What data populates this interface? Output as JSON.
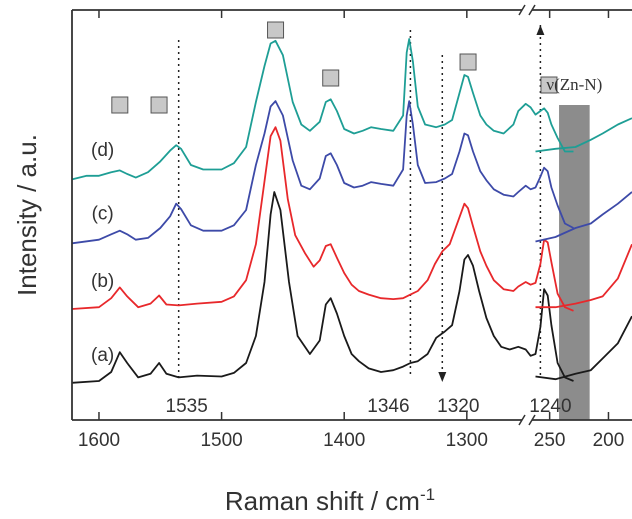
{
  "chart_data": {
    "type": "line",
    "title": "",
    "xlabel": "Raman shift / cm",
    "xlabel_sup": "-1",
    "ylabel": "Intensity / a.u.",
    "x_axis_reversed": true,
    "x_axis_broken": true,
    "x_segments": [
      {
        "xlim": [
          1622,
          1255
        ],
        "ticks": [
          1600,
          1500,
          1400,
          1300
        ]
      },
      {
        "xlim": [
          265,
          180
        ],
        "ticks": [
          250,
          200
        ]
      }
    ],
    "colors": {
      "a": "#1a1a1a",
      "b": "#e8282b",
      "c": "#3d4aa8",
      "d": "#1e9e95",
      "band": "#8c8c8c",
      "marker": "#c8c8c8"
    },
    "series": [
      {
        "name": "(a)",
        "key": "a",
        "offset": 0,
        "main": [
          [
            1622,
            8
          ],
          [
            1600,
            10
          ],
          [
            1590,
            20
          ],
          [
            1583,
            42
          ],
          [
            1577,
            30
          ],
          [
            1568,
            14
          ],
          [
            1558,
            18
          ],
          [
            1551,
            30
          ],
          [
            1545,
            18
          ],
          [
            1535,
            14
          ],
          [
            1520,
            16
          ],
          [
            1500,
            15
          ],
          [
            1490,
            19
          ],
          [
            1480,
            30
          ],
          [
            1472,
            60
          ],
          [
            1465,
            120
          ],
          [
            1460,
            195
          ],
          [
            1457,
            220
          ],
          [
            1452,
            200
          ],
          [
            1445,
            120
          ],
          [
            1438,
            60
          ],
          [
            1428,
            40
          ],
          [
            1420,
            55
          ],
          [
            1415,
            95
          ],
          [
            1411,
            102
          ],
          [
            1406,
            85
          ],
          [
            1400,
            60
          ],
          [
            1394,
            40
          ],
          [
            1388,
            32
          ],
          [
            1380,
            24
          ],
          [
            1370,
            20
          ],
          [
            1360,
            22
          ],
          [
            1352,
            26
          ],
          [
            1346,
            30
          ],
          [
            1340,
            32
          ],
          [
            1332,
            40
          ],
          [
            1325,
            58
          ],
          [
            1318,
            65
          ],
          [
            1312,
            72
          ],
          [
            1306,
            110
          ],
          [
            1302,
            145
          ],
          [
            1299,
            150
          ],
          [
            1295,
            138
          ],
          [
            1290,
            110
          ],
          [
            1284,
            80
          ],
          [
            1278,
            60
          ],
          [
            1272,
            48
          ],
          [
            1265,
            45
          ],
          [
            1258,
            48
          ],
          [
            1252,
            45
          ],
          [
            1248,
            38
          ],
          [
            1244,
            40
          ],
          [
            1240,
            70
          ],
          [
            1237,
            112
          ],
          [
            1234,
            105
          ],
          [
            1231,
            72
          ],
          [
            1226,
            30
          ],
          [
            1220,
            14
          ],
          [
            1213,
            10
          ]
        ],
        "low": [
          [
            262,
            15
          ],
          [
            245,
            12
          ],
          [
            228,
            18
          ],
          [
            215,
            22
          ],
          [
            205,
            35
          ],
          [
            192,
            52
          ],
          [
            180,
            82
          ]
        ]
      },
      {
        "name": "(b)",
        "key": "b",
        "offset": 82,
        "main": [
          [
            1622,
            8
          ],
          [
            1600,
            10
          ],
          [
            1590,
            20
          ],
          [
            1583,
            32
          ],
          [
            1577,
            22
          ],
          [
            1568,
            10
          ],
          [
            1558,
            14
          ],
          [
            1551,
            23
          ],
          [
            1545,
            13
          ],
          [
            1535,
            12
          ],
          [
            1520,
            14
          ],
          [
            1500,
            16
          ],
          [
            1490,
            22
          ],
          [
            1480,
            40
          ],
          [
            1472,
            80
          ],
          [
            1465,
            150
          ],
          [
            1460,
            200
          ],
          [
            1456,
            210
          ],
          [
            1452,
            195
          ],
          [
            1446,
            130
          ],
          [
            1440,
            90
          ],
          [
            1432,
            70
          ],
          [
            1425,
            55
          ],
          [
            1420,
            62
          ],
          [
            1415,
            78
          ],
          [
            1411,
            80
          ],
          [
            1406,
            65
          ],
          [
            1400,
            48
          ],
          [
            1394,
            35
          ],
          [
            1388,
            28
          ],
          [
            1380,
            24
          ],
          [
            1370,
            20
          ],
          [
            1360,
            19
          ],
          [
            1352,
            20
          ],
          [
            1346,
            24
          ],
          [
            1340,
            28
          ],
          [
            1332,
            40
          ],
          [
            1326,
            58
          ],
          [
            1320,
            72
          ],
          [
            1314,
            80
          ],
          [
            1306,
            110
          ],
          [
            1302,
            125
          ],
          [
            1299,
            120
          ],
          [
            1295,
            100
          ],
          [
            1289,
            72
          ],
          [
            1284,
            56
          ],
          [
            1278,
            40
          ],
          [
            1270,
            30
          ],
          [
            1262,
            28
          ],
          [
            1258,
            33
          ],
          [
            1252,
            38
          ],
          [
            1248,
            35
          ],
          [
            1244,
            37
          ],
          [
            1240,
            58
          ],
          [
            1237,
            85
          ],
          [
            1234,
            82
          ],
          [
            1231,
            60
          ],
          [
            1226,
            25
          ],
          [
            1220,
            10
          ],
          [
            1213,
            6
          ]
        ],
        "low": [
          [
            262,
            10
          ],
          [
            245,
            10
          ],
          [
            228,
            14
          ],
          [
            215,
            18
          ],
          [
            205,
            22
          ],
          [
            192,
            42
          ],
          [
            180,
            80
          ]
        ]
      },
      {
        "name": "(c)",
        "key": "c",
        "offset": 155,
        "main": [
          [
            1622,
            8
          ],
          [
            1600,
            12
          ],
          [
            1590,
            18
          ],
          [
            1583,
            22
          ],
          [
            1577,
            18
          ],
          [
            1570,
            12
          ],
          [
            1560,
            14
          ],
          [
            1550,
            25
          ],
          [
            1542,
            38
          ],
          [
            1537,
            52
          ],
          [
            1533,
            46
          ],
          [
            1525,
            28
          ],
          [
            1515,
            22
          ],
          [
            1500,
            22
          ],
          [
            1490,
            28
          ],
          [
            1480,
            45
          ],
          [
            1472,
            95
          ],
          [
            1465,
            130
          ],
          [
            1460,
            160
          ],
          [
            1456,
            166
          ],
          [
            1450,
            150
          ],
          [
            1442,
            100
          ],
          [
            1435,
            72
          ],
          [
            1428,
            68
          ],
          [
            1420,
            80
          ],
          [
            1415,
            105
          ],
          [
            1411,
            108
          ],
          [
            1406,
            95
          ],
          [
            1400,
            75
          ],
          [
            1392,
            70
          ],
          [
            1385,
            72
          ],
          [
            1378,
            76
          ],
          [
            1370,
            74
          ],
          [
            1360,
            72
          ],
          [
            1352,
            90
          ],
          [
            1349,
            150
          ],
          [
            1347,
            166
          ],
          [
            1344,
            140
          ],
          [
            1340,
            95
          ],
          [
            1334,
            75
          ],
          [
            1325,
            76
          ],
          [
            1318,
            80
          ],
          [
            1312,
            85
          ],
          [
            1306,
            110
          ],
          [
            1302,
            130
          ],
          [
            1299,
            128
          ],
          [
            1295,
            110
          ],
          [
            1289,
            88
          ],
          [
            1284,
            78
          ],
          [
            1278,
            68
          ],
          [
            1270,
            62
          ],
          [
            1262,
            60
          ],
          [
            1258,
            65
          ],
          [
            1252,
            72
          ],
          [
            1248,
            68
          ],
          [
            1244,
            70
          ],
          [
            1240,
            82
          ],
          [
            1237,
            92
          ],
          [
            1234,
            88
          ],
          [
            1231,
            70
          ],
          [
            1226,
            50
          ],
          [
            1220,
            30
          ],
          [
            1213,
            25
          ]
        ],
        "low": [
          [
            262,
            10
          ],
          [
            245,
            15
          ],
          [
            228,
            25
          ],
          [
            215,
            30
          ],
          [
            205,
            40
          ],
          [
            192,
            52
          ],
          [
            180,
            65
          ]
        ]
      },
      {
        "name": "(d)",
        "key": "d",
        "offset": 210,
        "main": [
          [
            1622,
            24
          ],
          [
            1610,
            28
          ],
          [
            1600,
            28
          ],
          [
            1590,
            32
          ],
          [
            1583,
            34
          ],
          [
            1577,
            30
          ],
          [
            1570,
            26
          ],
          [
            1560,
            32
          ],
          [
            1550,
            44
          ],
          [
            1542,
            56
          ],
          [
            1537,
            62
          ],
          [
            1533,
            58
          ],
          [
            1525,
            40
          ],
          [
            1515,
            35
          ],
          [
            1500,
            35
          ],
          [
            1490,
            42
          ],
          [
            1480,
            60
          ],
          [
            1472,
            110
          ],
          [
            1465,
            150
          ],
          [
            1460,
            175
          ],
          [
            1456,
            178
          ],
          [
            1450,
            162
          ],
          [
            1442,
            110
          ],
          [
            1435,
            85
          ],
          [
            1428,
            78
          ],
          [
            1420,
            88
          ],
          [
            1415,
            110
          ],
          [
            1411,
            113
          ],
          [
            1406,
            100
          ],
          [
            1400,
            80
          ],
          [
            1392,
            75
          ],
          [
            1385,
            78
          ],
          [
            1378,
            82
          ],
          [
            1370,
            80
          ],
          [
            1360,
            78
          ],
          [
            1352,
            95
          ],
          [
            1349,
            165
          ],
          [
            1347,
            180
          ],
          [
            1344,
            155
          ],
          [
            1340,
            105
          ],
          [
            1334,
            85
          ],
          [
            1325,
            82
          ],
          [
            1318,
            85
          ],
          [
            1312,
            90
          ],
          [
            1306,
            120
          ],
          [
            1302,
            140
          ],
          [
            1299,
            138
          ],
          [
            1295,
            120
          ],
          [
            1289,
            95
          ],
          [
            1284,
            85
          ],
          [
            1278,
            78
          ],
          [
            1270,
            75
          ],
          [
            1262,
            85
          ],
          [
            1258,
            100
          ],
          [
            1252,
            108
          ],
          [
            1248,
            104
          ],
          [
            1244,
            96
          ],
          [
            1240,
            100
          ],
          [
            1237,
            103
          ],
          [
            1234,
            98
          ],
          [
            1231,
            85
          ],
          [
            1226,
            70
          ],
          [
            1220,
            55
          ],
          [
            1213,
            55
          ]
        ],
        "low": [
          [
            262,
            55
          ],
          [
            245,
            58
          ],
          [
            228,
            60
          ],
          [
            215,
            68
          ],
          [
            205,
            75
          ],
          [
            192,
            85
          ],
          [
            180,
            92
          ]
        ]
      }
    ],
    "trace_labels": [
      {
        "key": "a",
        "text": "(a)"
      },
      {
        "key": "b",
        "text": "(b)"
      },
      {
        "key": "c",
        "text": "(c)"
      },
      {
        "key": "d",
        "text": "(d)"
      }
    ],
    "annotations": [
      {
        "x": 1535,
        "label": "1535",
        "arrow": "none"
      },
      {
        "x": 1346,
        "label": "1346",
        "arrow": "none"
      },
      {
        "x": 1320,
        "label": "1320",
        "arrow": "down"
      },
      {
        "x": 1240,
        "label": "1240",
        "arrow": "up"
      }
    ],
    "markers": [
      1583,
      1551,
      1456,
      1411,
      1299,
      1233
    ],
    "band": {
      "label": "ν(Zn-N)",
      "xrange": [
        242,
        216
      ]
    }
  }
}
